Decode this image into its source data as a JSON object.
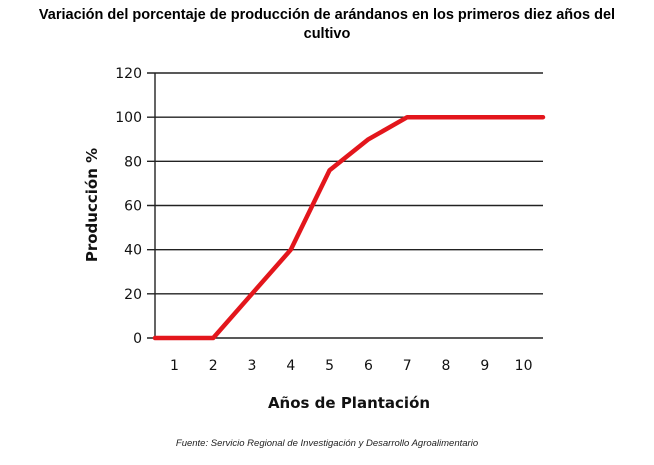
{
  "chart_data": {
    "type": "line",
    "title_line1": "Variación del porcentaje de producción de arándanos en los primeros diez años del",
    "title_line2": "cultivo",
    "xlabel": "Años de Plantación",
    "ylabel": "Producción %",
    "x": [
      0.5,
      1,
      2,
      3,
      4,
      5,
      6,
      7,
      8,
      9,
      10,
      10.5
    ],
    "y": [
      0,
      0,
      0,
      20,
      40,
      76,
      90,
      100,
      100,
      100,
      100,
      100
    ],
    "xticks": [
      1,
      2,
      3,
      4,
      5,
      6,
      7,
      8,
      9,
      10
    ],
    "yticks": [
      0,
      20,
      40,
      60,
      80,
      100,
      120
    ],
    "xlim": [
      0.5,
      10.5
    ],
    "ylim": [
      0,
      120
    ],
    "grid": "horizontal",
    "line_color": "#e3161c",
    "source": "Fuente: Servicio Regional de Investigación y Desarrollo Agroalimentario"
  }
}
